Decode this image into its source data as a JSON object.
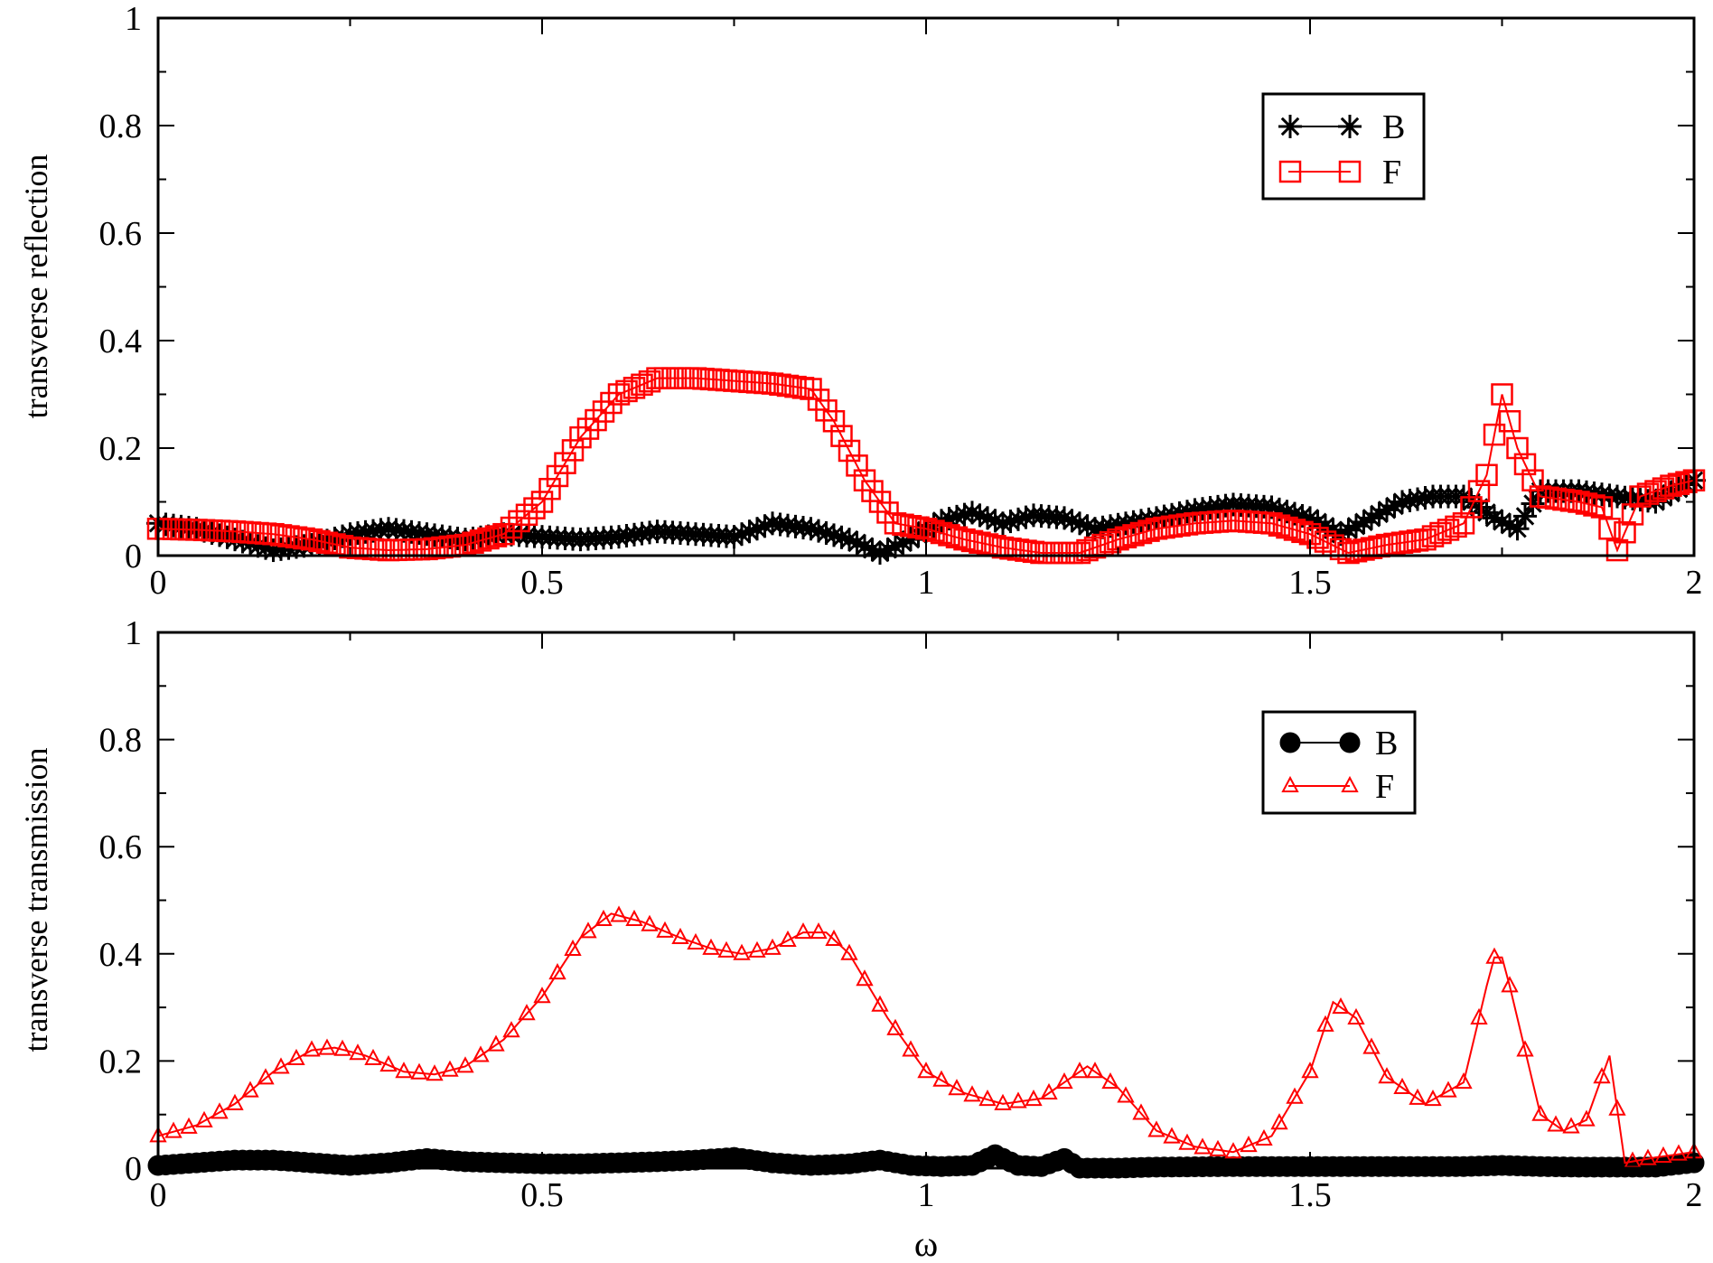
{
  "chart_data": [
    {
      "type": "line",
      "ylabel": "transverse reflection",
      "xlabel": "",
      "xlim": [
        0,
        2
      ],
      "ylim": [
        0,
        1
      ],
      "xticks": [
        "0",
        "0.5",
        "1",
        "1.5",
        "2"
      ],
      "yticks": [
        "0",
        "0.2",
        "0.4",
        "0.6",
        "0.8",
        "1"
      ],
      "legend_position": "top-right",
      "series": [
        {
          "name": "B",
          "color": "#000000",
          "marker": "star",
          "x": [
            0,
            0.05,
            0.1,
            0.15,
            0.2,
            0.25,
            0.3,
            0.35,
            0.4,
            0.45,
            0.5,
            0.55,
            0.6,
            0.65,
            0.7,
            0.75,
            0.8,
            0.85,
            0.9,
            0.94,
            0.98,
            1.02,
            1.06,
            1.1,
            1.14,
            1.18,
            1.22,
            1.26,
            1.3,
            1.35,
            1.4,
            1.45,
            1.5,
            1.54,
            1.58,
            1.62,
            1.66,
            1.7,
            1.74,
            1.77,
            1.8,
            1.85,
            1.9,
            1.95,
            2.0
          ],
          "values": [
            0.06,
            0.05,
            0.03,
            0.01,
            0.02,
            0.04,
            0.05,
            0.04,
            0.03,
            0.04,
            0.035,
            0.03,
            0.035,
            0.045,
            0.04,
            0.035,
            0.06,
            0.05,
            0.03,
            0.005,
            0.03,
            0.065,
            0.08,
            0.06,
            0.075,
            0.07,
            0.05,
            0.06,
            0.07,
            0.085,
            0.095,
            0.09,
            0.07,
            0.04,
            0.07,
            0.1,
            0.11,
            0.11,
            0.07,
            0.05,
            0.12,
            0.12,
            0.11,
            0.1,
            0.14
          ]
        },
        {
          "name": "F",
          "color": "#ff0000",
          "marker": "square",
          "x": [
            0,
            0.05,
            0.1,
            0.15,
            0.2,
            0.25,
            0.3,
            0.35,
            0.4,
            0.45,
            0.5,
            0.55,
            0.6,
            0.65,
            0.7,
            0.75,
            0.8,
            0.85,
            0.88,
            0.92,
            0.96,
            1.0,
            1.05,
            1.1,
            1.15,
            1.2,
            1.25,
            1.3,
            1.35,
            1.4,
            1.45,
            1.5,
            1.55,
            1.6,
            1.65,
            1.7,
            1.73,
            1.75,
            1.77,
            1.8,
            1.85,
            1.88,
            1.9,
            1.93,
            1.97,
            2.0
          ],
          "values": [
            0.05,
            0.048,
            0.045,
            0.04,
            0.03,
            0.015,
            0.01,
            0.012,
            0.02,
            0.04,
            0.1,
            0.22,
            0.3,
            0.33,
            0.33,
            0.325,
            0.32,
            0.31,
            0.25,
            0.14,
            0.06,
            0.05,
            0.03,
            0.015,
            0.005,
            0.005,
            0.03,
            0.05,
            0.06,
            0.065,
            0.06,
            0.04,
            0.005,
            0.02,
            0.03,
            0.06,
            0.15,
            0.3,
            0.2,
            0.11,
            0.1,
            0.09,
            0.01,
            0.11,
            0.13,
            0.14
          ]
        }
      ]
    },
    {
      "type": "line",
      "ylabel": "transverse transmission",
      "xlabel": "ω",
      "xlim": [
        0,
        2
      ],
      "ylim": [
        0,
        1
      ],
      "xticks": [
        "0",
        "0.5",
        "1",
        "1.5",
        "2"
      ],
      "yticks": [
        "0",
        "0.2",
        "0.4",
        "0.6",
        "0.8",
        "1"
      ],
      "legend_position": "top-right",
      "series": [
        {
          "name": "B",
          "color": "#000000",
          "marker": "circle",
          "x": [
            0,
            0.05,
            0.1,
            0.15,
            0.2,
            0.25,
            0.3,
            0.35,
            0.4,
            0.45,
            0.5,
            0.55,
            0.6,
            0.65,
            0.7,
            0.75,
            0.8,
            0.85,
            0.9,
            0.94,
            0.98,
            1.02,
            1.06,
            1.09,
            1.12,
            1.15,
            1.18,
            1.2,
            1.25,
            1.3,
            1.4,
            1.5,
            1.6,
            1.7,
            1.75,
            1.8,
            1.85,
            1.9,
            1.95,
            2.0
          ],
          "values": [
            0.005,
            0.01,
            0.015,
            0.015,
            0.01,
            0.005,
            0.01,
            0.018,
            0.012,
            0.01,
            0.008,
            0.008,
            0.01,
            0.012,
            0.015,
            0.02,
            0.01,
            0.005,
            0.008,
            0.015,
            0.005,
            0.003,
            0.005,
            0.025,
            0.005,
            0.003,
            0.018,
            0.0,
            0.0,
            0.002,
            0.003,
            0.003,
            0.003,
            0.003,
            0.005,
            0.003,
            0.002,
            0.002,
            0.002,
            0.01
          ]
        },
        {
          "name": "F",
          "color": "#ff0000",
          "marker": "triangle",
          "x": [
            0,
            0.05,
            0.1,
            0.15,
            0.2,
            0.23,
            0.27,
            0.32,
            0.36,
            0.4,
            0.45,
            0.5,
            0.55,
            0.59,
            0.63,
            0.68,
            0.72,
            0.76,
            0.8,
            0.84,
            0.87,
            0.9,
            0.95,
            1.0,
            1.05,
            1.1,
            1.15,
            1.21,
            1.25,
            1.3,
            1.35,
            1.4,
            1.45,
            1.5,
            1.53,
            1.56,
            1.6,
            1.65,
            1.7,
            1.73,
            1.745,
            1.76,
            1.8,
            1.83,
            1.86,
            1.89,
            1.91,
            1.95,
            2.0
          ],
          "values": [
            0.06,
            0.08,
            0.12,
            0.18,
            0.22,
            0.225,
            0.21,
            0.18,
            0.175,
            0.19,
            0.24,
            0.32,
            0.43,
            0.475,
            0.46,
            0.43,
            0.41,
            0.4,
            0.41,
            0.44,
            0.44,
            0.4,
            0.28,
            0.18,
            0.14,
            0.12,
            0.13,
            0.19,
            0.15,
            0.07,
            0.04,
            0.03,
            0.06,
            0.18,
            0.31,
            0.28,
            0.17,
            0.12,
            0.16,
            0.34,
            0.42,
            0.34,
            0.1,
            0.07,
            0.09,
            0.21,
            0.01,
            0.02,
            0.03
          ]
        }
      ]
    }
  ]
}
